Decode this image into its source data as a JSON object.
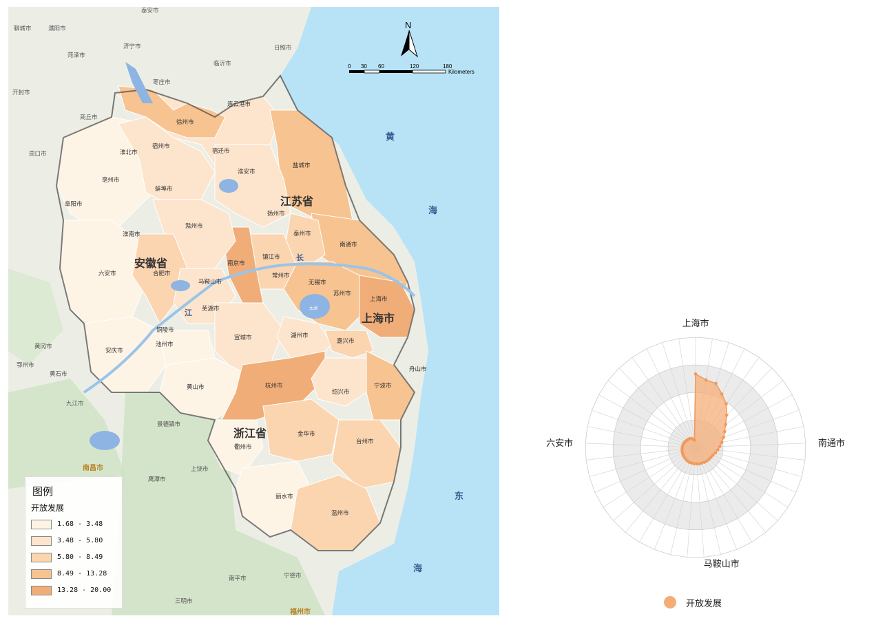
{
  "map": {
    "legend": {
      "title": "图例",
      "subtitle": "开放发展",
      "classes": [
        {
          "label": "1.68 - 3.48",
          "color": "#fef4e6"
        },
        {
          "label": "3.48 - 5.80",
          "color": "#fde4cc"
        },
        {
          "label": "5.80 - 8.49",
          "color": "#fbd5b0"
        },
        {
          "label": "8.49 - 13.28",
          "color": "#f7c390"
        },
        {
          "label": "13.28 - 20.00",
          "color": "#f0ad78"
        }
      ]
    },
    "north_label": "N",
    "scale_ticks": [
      "0",
      "30",
      "60",
      "120",
      "180"
    ],
    "scale_unit": "Kilometers",
    "province_labels": [
      "江苏省",
      "安徽省",
      "浙江省",
      "上海市"
    ],
    "sea_labels": [
      "黄",
      "海",
      "东",
      "海"
    ],
    "river_labels": [
      "长",
      "江"
    ],
    "lake_labels": [
      "太湖"
    ],
    "city_labels": [
      "连云港市",
      "徐州市",
      "宿迁市",
      "淮安市",
      "盐城市",
      "扬州市",
      "泰州市",
      "南通市",
      "镇江市",
      "常州市",
      "无锡市",
      "苏州市",
      "南京市",
      "上海市",
      "宿州市",
      "淮北市",
      "亳州市",
      "阜阳市",
      "蚌埠市",
      "淮南市",
      "滁州市",
      "六安市",
      "合肥市",
      "马鞍山市",
      "芜湖市",
      "铜陵市",
      "宣城市",
      "池州市",
      "安庆市",
      "黄山市",
      "湖州市",
      "嘉兴市",
      "杭州市",
      "绍兴市",
      "宁波市",
      "舟山市",
      "金华市",
      "衢州市",
      "台州市",
      "丽水市",
      "温州市"
    ],
    "outside_labels": [
      "泰安市",
      "聊城市",
      "濮阳市",
      "济宁市",
      "菏泽市",
      "临沂市",
      "日照市",
      "枣庄市",
      "开封市",
      "商丘市",
      "周口市",
      "黄冈市",
      "鄂州市",
      "黄石市",
      "九江市",
      "景德镇市",
      "上饶市",
      "鹰潭市",
      "南昌市",
      "南平市",
      "宁德市",
      "三明市",
      "福州市"
    ]
  },
  "chart_data": {
    "type": "radar",
    "series": [
      {
        "name": "开放发展"
      }
    ],
    "axis_labels": [
      "上海市",
      "南通市",
      "马鞍山市",
      "六安市"
    ],
    "categories": [
      "上海市",
      "c02",
      "c03",
      "c04",
      "c05",
      "c06",
      "c07",
      "c08",
      "c09",
      "c10",
      "南通市",
      "c12",
      "c13",
      "c14",
      "c15",
      "c16",
      "c17",
      "c18",
      "c19",
      "c20",
      "马鞍山市",
      "c22",
      "c23",
      "c24",
      "c25",
      "c26",
      "c27",
      "c28",
      "c29",
      "c30",
      "六安市",
      "c32",
      "c33",
      "c34",
      "c35",
      "c36",
      "c37",
      "c38",
      "c39",
      "c40",
      "c41"
    ],
    "values": [
      20.0,
      18.6,
      18.3,
      16.2,
      14.5,
      12.2,
      10.3,
      9.0,
      8.1,
      7.3,
      6.6,
      6.1,
      5.6,
      5.2,
      5.0,
      4.9,
      4.8,
      4.7,
      4.6,
      4.6,
      4.5,
      4.5,
      4.4,
      4.4,
      4.3,
      4.2,
      4.1,
      4.0,
      3.9,
      3.8,
      3.7,
      3.6,
      3.5,
      3.4,
      3.3,
      3.1,
      3.0,
      2.9,
      2.7,
      2.4,
      2.0
    ],
    "rmax": 30,
    "rings": 4,
    "color": "#f5ad78"
  }
}
